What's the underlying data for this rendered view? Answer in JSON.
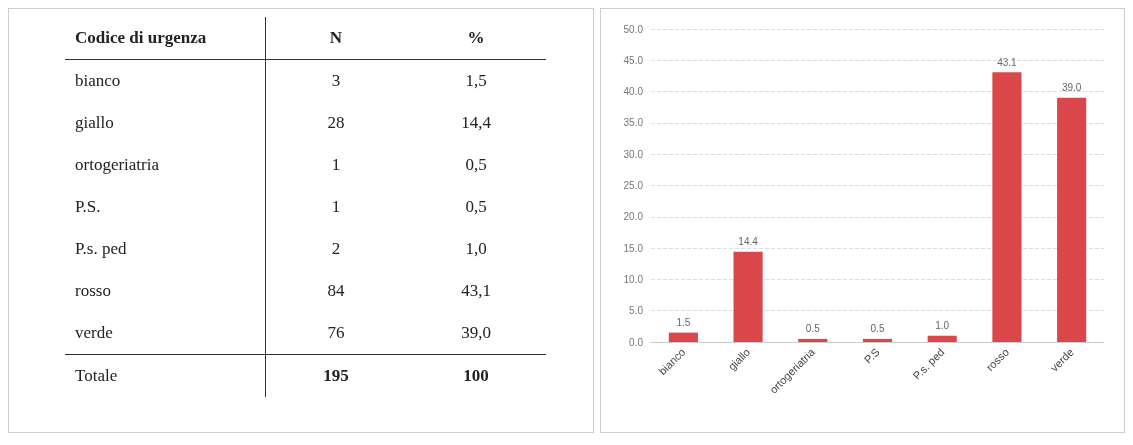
{
  "chart_data": [
    {
      "type": "other",
      "xlabel": "Codice di urgenza",
      "data_labels": true,
      "categories": [
        "bianco",
        "giallo",
        "ortogeriatria",
        "P.S.",
        "P.s. ped",
        "rosso",
        "verde",
        "Totale"
      ],
      "series": [
        {
          "name": "N",
          "values": [
            3,
            28,
            1,
            1,
            2,
            84,
            76,
            195
          ]
        },
        {
          "name": "%",
          "values": [
            1.5,
            14.4,
            0.5,
            0.5,
            1.0,
            43.1,
            39.0,
            100
          ],
          "value_labels": [
            "1,5",
            "14,4",
            "0,5",
            "0,5",
            "1,0",
            "43,1",
            "39,0",
            "100"
          ]
        }
      ]
    },
    {
      "type": "bar",
      "categories": [
        "bianco",
        "giallo",
        "ortogeriatria",
        "P.S",
        "P.s. ped",
        "rosso",
        "verde"
      ],
      "values": [
        1.5,
        14.4,
        0.5,
        0.5,
        1.0,
        43.1,
        39.0
      ],
      "value_labels": [
        "1.5",
        "14.4",
        "0.5",
        "0.5",
        "1.0",
        "43.1",
        "39.0"
      ],
      "data_labels": true,
      "color": "#d9474b",
      "ylim": [
        0,
        50
      ],
      "yticks": [
        {
          "value": 0,
          "label": "0.0"
        },
        {
          "value": 5,
          "label": "5.0"
        },
        {
          "value": 10,
          "label": "10.0"
        },
        {
          "value": 15,
          "label": "15.0"
        },
        {
          "value": 20,
          "label": "20.0"
        },
        {
          "value": 25,
          "label": "25.0"
        },
        {
          "value": 30,
          "label": "30.0"
        },
        {
          "value": 35,
          "label": "35.0"
        },
        {
          "value": 40,
          "label": "40.0"
        },
        {
          "value": 45,
          "label": "45.0"
        },
        {
          "value": 50,
          "label": "50.0"
        }
      ],
      "grid": "y"
    }
  ]
}
